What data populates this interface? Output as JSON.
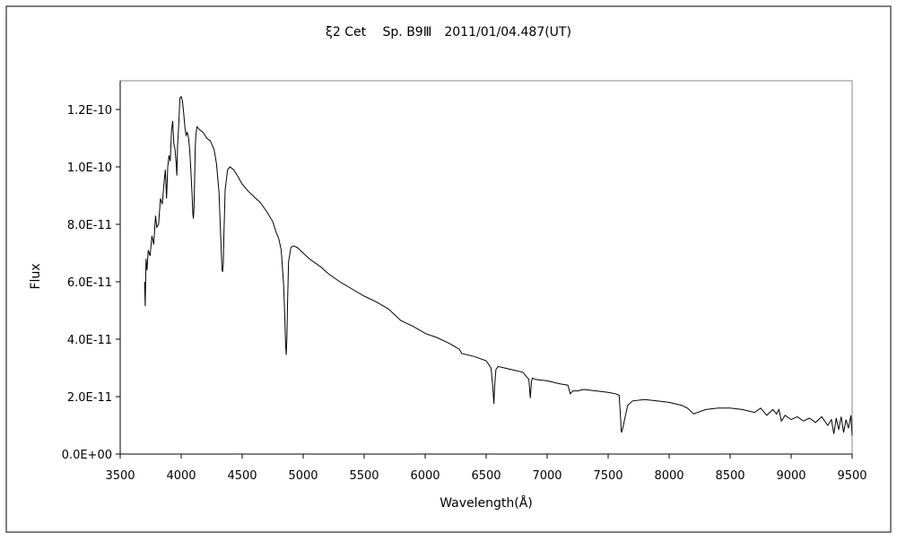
{
  "chart_data": {
    "type": "line",
    "title": "ξ2 Cet　 Sp. B9Ⅲ　2011/01/04.487(UT)",
    "xlabel": "Wavelength(Å)",
    "ylabel": "Flux",
    "xlim": [
      3500,
      9500
    ],
    "ylim": [
      0,
      1.3e-10
    ],
    "grid": false,
    "legend": "none",
    "x_ticks": [
      3500,
      4000,
      4500,
      5000,
      5500,
      6000,
      6500,
      7000,
      7500,
      8000,
      8500,
      9000,
      9500
    ],
    "x_tick_labels": [
      "3500",
      "4000",
      "4500",
      "5000",
      "5500",
      "6000",
      "6500",
      "7000",
      "7500",
      "8000",
      "8500",
      "9000",
      "9500"
    ],
    "y_ticks": [
      0,
      2e-11,
      4e-11,
      6e-11,
      8e-11,
      1e-10,
      1.2e-10
    ],
    "y_tick_labels": [
      "0.0E+00",
      "2.0E-11",
      "4.0E-11",
      "6.0E-11",
      "8.0E-11",
      "1.0E-10",
      "1.2E-10"
    ],
    "line_color": "#000000",
    "series": [
      {
        "x": [
          3700,
          3705,
          3712,
          3720,
          3730,
          3745,
          3760,
          3775,
          3790,
          3800,
          3815,
          3830,
          3845,
          3860,
          3870,
          3880,
          3890,
          3900,
          3910,
          3920,
          3930,
          3940,
          3950,
          3960,
          3965,
          3970,
          3980,
          3990,
          4000,
          4010,
          4020,
          4030,
          4040,
          4050,
          4060,
          4070,
          4080,
          4090,
          4095,
          4100,
          4105,
          4110,
          4115,
          4120,
          4130,
          4150,
          4180,
          4210,
          4240,
          4270,
          4290,
          4310,
          4320,
          4330,
          4335,
          4340,
          4345,
          4350,
          4360,
          4380,
          4400,
          4430,
          4460,
          4500,
          4550,
          4600,
          4650,
          4700,
          4750,
          4780,
          4800,
          4820,
          4840,
          4850,
          4855,
          4861,
          4866,
          4872,
          4880,
          4900,
          4920,
          4950,
          5000,
          5050,
          5100,
          5150,
          5200,
          5300,
          5400,
          5500,
          5600,
          5700,
          5800,
          5900,
          6000,
          6100,
          6200,
          6280,
          6300,
          6400,
          6500,
          6540,
          6555,
          6563,
          6570,
          6580,
          6600,
          6700,
          6800,
          6850,
          6862,
          6867,
          6872,
          6880,
          6900,
          7000,
          7100,
          7170,
          7190,
          7210,
          7250,
          7300,
          7400,
          7500,
          7560,
          7590,
          7600,
          7608,
          7620,
          7640,
          7660,
          7700,
          7800,
          7900,
          8000,
          8100,
          8150,
          8200,
          8300,
          8400,
          8500,
          8600,
          8650,
          8700,
          8750,
          8800,
          8850,
          8880,
          8900,
          8920,
          8950,
          9000,
          9050,
          9100,
          9150,
          9200,
          9250,
          9300,
          9330,
          9350,
          9370,
          9390,
          9410,
          9430,
          9450,
          9470,
          9490,
          9500
        ],
        "y": [
          6e-11,
          5.15e-11,
          6.8e-11,
          6.4e-11,
          7.1e-11,
          6.9e-11,
          7.6e-11,
          7.3e-11,
          8.3e-11,
          7.9e-11,
          8e-11,
          8.9e-11,
          8.7e-11,
          9.5e-11,
          9.9e-11,
          8.9e-11,
          1e-10,
          1.04e-10,
          1.02e-10,
          1.12e-10,
          1.16e-10,
          1.08e-10,
          1.06e-10,
          1e-10,
          9.7e-11,
          1.07e-10,
          1.15e-10,
          1.24e-10,
          1.245e-10,
          1.23e-10,
          1.19e-10,
          1.14e-10,
          1.11e-10,
          1.12e-10,
          1.1e-10,
          1.06e-10,
          9.8e-11,
          9e-11,
          8.4e-11,
          8.2e-11,
          8.6e-11,
          9.6e-11,
          1.06e-10,
          1.11e-10,
          1.14e-10,
          1.13e-10,
          1.12e-10,
          1.1e-10,
          1.09e-10,
          1.06e-10,
          1.01e-10,
          9.1e-11,
          8e-11,
          6.9e-11,
          6.4e-11,
          6.35e-11,
          6.6e-11,
          7.6e-11,
          9.2e-11,
          9.9e-11,
          1e-10,
          9.9e-11,
          9.7e-11,
          9.4e-11,
          9.15e-11,
          8.95e-11,
          8.75e-11,
          8.45e-11,
          8.1e-11,
          7.7e-11,
          7.5e-11,
          7.1e-11,
          5.9e-11,
          4.7e-11,
          3.9e-11,
          3.45e-11,
          4e-11,
          5.3e-11,
          6.7e-11,
          7.2e-11,
          7.25e-11,
          7.2e-11,
          7e-11,
          6.8e-11,
          6.65e-11,
          6.5e-11,
          6.3e-11,
          6e-11,
          5.75e-11,
          5.5e-11,
          5.3e-11,
          5.05e-11,
          4.65e-11,
          4.45e-11,
          4.2e-11,
          4.05e-11,
          3.85e-11,
          3.65e-11,
          3.5e-11,
          3.4e-11,
          3.25e-11,
          3e-11,
          2.3e-11,
          1.75e-11,
          2.4e-11,
          2.95e-11,
          3.05e-11,
          2.95e-11,
          2.85e-11,
          2.6e-11,
          1.95e-11,
          2.25e-11,
          2.55e-11,
          2.65e-11,
          2.6e-11,
          2.55e-11,
          2.45e-11,
          2.4e-11,
          2.1e-11,
          2.2e-11,
          2.2e-11,
          2.25e-11,
          2.2e-11,
          2.15e-11,
          2.1e-11,
          2.05e-11,
          1.4e-11,
          7.5e-12,
          9e-12,
          1.3e-11,
          1.7e-11,
          1.85e-11,
          1.9e-11,
          1.85e-11,
          1.8e-11,
          1.7e-11,
          1.6e-11,
          1.4e-11,
          1.55e-11,
          1.6e-11,
          1.6e-11,
          1.55e-11,
          1.5e-11,
          1.45e-11,
          1.6e-11,
          1.35e-11,
          1.55e-11,
          1.4e-11,
          1.55e-11,
          1.15e-11,
          1.35e-11,
          1.2e-11,
          1.3e-11,
          1.15e-11,
          1.25e-11,
          1.1e-11,
          1.3e-11,
          1e-11,
          1.2e-11,
          7e-12,
          1.25e-11,
          8.5e-12,
          1.3e-11,
          7.5e-12,
          1.2e-11,
          9e-12,
          1.35e-11,
          6.5e-12
        ]
      }
    ]
  }
}
